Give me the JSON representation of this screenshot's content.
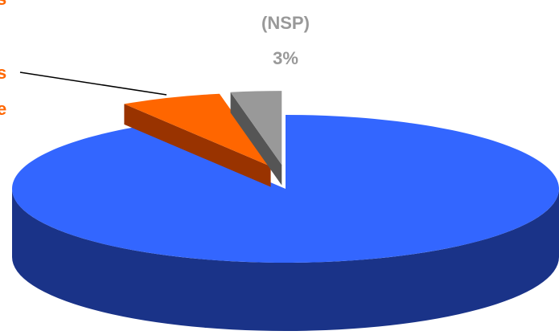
{
  "chart_data": {
    "type": "pie3d",
    "categories": [
      null,
      null,
      "(NSP)"
    ],
    "values": [
      91,
      6,
      3
    ],
    "value_labels": [
      null,
      null,
      "3%"
    ],
    "colors": [
      "#3366ff",
      "#ff6600",
      "#999999"
    ],
    "side_colors": [
      "#1a3388",
      "#993300",
      "#555555"
    ],
    "exploded": [
      false,
      true,
      true
    ],
    "annotations": [
      "s",
      "s",
      "e"
    ]
  }
}
